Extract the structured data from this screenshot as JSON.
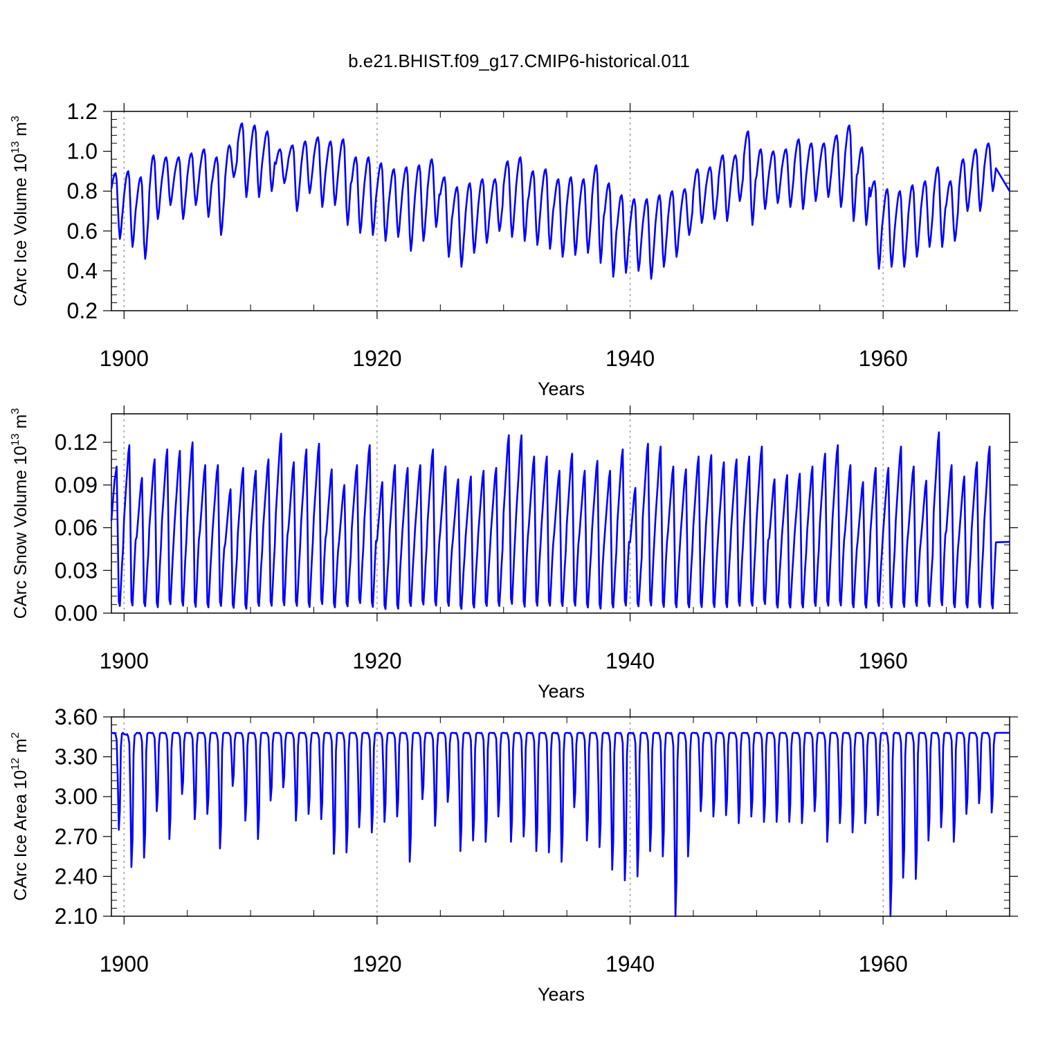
{
  "title": "b.e21.BHIST.f09_g17.CMIP6-historical.011",
  "chart_data": [
    {
      "type": "line",
      "name": "ice-volume",
      "title": "b.e21.BHIST.f09_g17.CMIP6-historical.011",
      "xlabel": "Years",
      "ylabel_main": "CArc Ice Volume 10",
      "ylabel_exp": "13",
      "ylabel_unit": " m",
      "ylabel_unit_exp": "3",
      "xlim": [
        1899,
        1970
      ],
      "ylim": [
        0.2,
        1.2
      ],
      "xticks": [
        1900,
        1920,
        1940,
        1960
      ],
      "xtick_labels": [
        "1900",
        "1920",
        "1940",
        "1960"
      ],
      "yticks": [
        0.2,
        0.4,
        0.6,
        0.8,
        1.0,
        1.2
      ],
      "ytick_labels": [
        "0.2",
        "0.4",
        "0.6",
        "0.8",
        "1.0",
        "1.2"
      ],
      "gridlines_x": [
        1900,
        1920,
        1940,
        1960
      ],
      "line_color": "#0000ff",
      "start_year": 1899,
      "monthly": false,
      "annual_max": [
        0.89,
        0.9,
        0.87,
        0.98,
        0.97,
        0.97,
        0.99,
        1.01,
        0.97,
        1.03,
        1.14,
        1.13,
        1.1,
        1.01,
        1.03,
        1.05,
        1.07,
        1.05,
        1.06,
        0.97,
        0.97,
        0.94,
        0.91,
        0.92,
        0.93,
        0.96,
        0.87,
        0.82,
        0.84,
        0.86,
        0.86,
        0.95,
        0.97,
        0.9,
        0.91,
        0.86,
        0.87,
        0.86,
        0.93,
        0.84,
        0.78,
        0.76,
        0.76,
        0.78,
        0.8,
        0.81,
        0.91,
        0.92,
        0.98,
        0.98,
        1.1,
        1.01,
        1.0,
        1.01,
        1.06,
        1.04,
        1.04,
        1.08,
        1.13,
        1.02,
        0.85,
        0.81,
        0.8,
        0.83,
        0.85,
        0.92,
        0.85,
        0.96,
        1.01,
        1.04,
        0.8
      ],
      "annual_min": [
        0.67,
        0.56,
        0.52,
        0.46,
        0.66,
        0.73,
        0.66,
        0.73,
        0.67,
        0.58,
        0.87,
        0.77,
        0.77,
        0.8,
        0.84,
        0.7,
        0.79,
        0.72,
        0.73,
        0.63,
        0.59,
        0.58,
        0.55,
        0.57,
        0.5,
        0.55,
        0.62,
        0.47,
        0.42,
        0.49,
        0.54,
        0.6,
        0.57,
        0.55,
        0.53,
        0.51,
        0.47,
        0.48,
        0.49,
        0.44,
        0.37,
        0.39,
        0.4,
        0.36,
        0.42,
        0.47,
        0.58,
        0.64,
        0.66,
        0.65,
        0.75,
        0.63,
        0.71,
        0.74,
        0.72,
        0.71,
        0.75,
        0.77,
        0.72,
        0.65,
        0.63,
        0.41,
        0.42,
        0.42,
        0.47,
        0.52,
        0.52,
        0.55,
        0.7,
        0.7,
        0.8
      ]
    },
    {
      "type": "line",
      "name": "snow-volume",
      "xlabel": "Years",
      "ylabel_main": "CArc Snow Volume 10",
      "ylabel_exp": "13",
      "ylabel_unit": " m",
      "ylabel_unit_exp": "3",
      "xlim": [
        1899,
        1970
      ],
      "ylim": [
        0.0,
        0.14
      ],
      "xticks": [
        1900,
        1920,
        1940,
        1960
      ],
      "xtick_labels": [
        "1900",
        "1920",
        "1940",
        "1960"
      ],
      "yticks": [
        0.0,
        0.03,
        0.06,
        0.09,
        0.12
      ],
      "ytick_labels": [
        "0.00",
        "0.03",
        "0.06",
        "0.09",
        "0.12"
      ],
      "gridlines_x": [
        1900,
        1920,
        1940,
        1960
      ],
      "line_color": "#0000ff",
      "start_year": 1899,
      "monthly": false,
      "annual_max": [
        0.103,
        0.118,
        0.095,
        0.108,
        0.115,
        0.114,
        0.12,
        0.104,
        0.104,
        0.087,
        0.102,
        0.1,
        0.108,
        0.126,
        0.106,
        0.115,
        0.119,
        0.101,
        0.09,
        0.104,
        0.118,
        0.092,
        0.104,
        0.102,
        0.104,
        0.115,
        0.103,
        0.094,
        0.096,
        0.1,
        0.102,
        0.125,
        0.125,
        0.11,
        0.11,
        0.1,
        0.112,
        0.1,
        0.107,
        0.1,
        0.115,
        0.088,
        0.119,
        0.117,
        0.103,
        0.101,
        0.11,
        0.111,
        0.106,
        0.108,
        0.11,
        0.117,
        0.094,
        0.097,
        0.098,
        0.103,
        0.112,
        0.118,
        0.104,
        0.092,
        0.102,
        0.102,
        0.117,
        0.103,
        0.093,
        0.127,
        0.104,
        0.096,
        0.106,
        0.117,
        0.05
      ],
      "annual_min": [
        0.065,
        0.003,
        0.003,
        0.002,
        0.004,
        0.003,
        0.002,
        0.002,
        0.003,
        0.002,
        0.001,
        0.003,
        0.003,
        0.003,
        0.003,
        0.002,
        0.004,
        0.002,
        0.003,
        0.005,
        0.002,
        0.001,
        0.001,
        0.003,
        0.004,
        0.003,
        0.003,
        0.001,
        0.002,
        0.003,
        0.003,
        0.004,
        0.002,
        0.003,
        0.003,
        0.003,
        0.003,
        0.002,
        0.001,
        0.002,
        0.003,
        0.003,
        0.003,
        0.002,
        0.002,
        0.002,
        0.002,
        0.002,
        0.002,
        0.003,
        0.003,
        0.004,
        0.002,
        0.002,
        0.002,
        0.003,
        0.003,
        0.003,
        0.002,
        0.002,
        0.003,
        0.002,
        0.002,
        0.003,
        0.003,
        0.003,
        0.002,
        0.002,
        0.002,
        0.001,
        0.05
      ]
    },
    {
      "type": "line",
      "name": "ice-area",
      "xlabel": "Years",
      "ylabel_main": "CArc Ice Area 10",
      "ylabel_exp": "12",
      "ylabel_unit": " m",
      "ylabel_unit_exp": "2",
      "xlim": [
        1899,
        1970
      ],
      "ylim": [
        2.1,
        3.6
      ],
      "xticks": [
        1900,
        1920,
        1940,
        1960
      ],
      "xtick_labels": [
        "1900",
        "1920",
        "1940",
        "1960"
      ],
      "yticks": [
        2.1,
        2.4,
        2.7,
        3.0,
        3.3,
        3.6
      ],
      "ytick_labels": [
        "2.10",
        "2.40",
        "2.70",
        "3.00",
        "3.30",
        "3.60"
      ],
      "gridlines_x": [
        1900,
        1920,
        1940,
        1960
      ],
      "line_color": "#0000ff",
      "start_year": 1899,
      "monthly": false,
      "annual_max": [
        3.48,
        3.47,
        3.48,
        3.48,
        3.48,
        3.48,
        3.48,
        3.48,
        3.48,
        3.48,
        3.48,
        3.48,
        3.48,
        3.48,
        3.48,
        3.48,
        3.48,
        3.48,
        3.48,
        3.48,
        3.48,
        3.48,
        3.48,
        3.48,
        3.48,
        3.48,
        3.48,
        3.48,
        3.48,
        3.48,
        3.48,
        3.48,
        3.48,
        3.48,
        3.48,
        3.48,
        3.48,
        3.48,
        3.48,
        3.48,
        3.48,
        3.48,
        3.48,
        3.48,
        3.48,
        3.48,
        3.48,
        3.48,
        3.48,
        3.48,
        3.48,
        3.48,
        3.48,
        3.48,
        3.48,
        3.48,
        3.48,
        3.48,
        3.48,
        3.48,
        3.48,
        3.48,
        3.48,
        3.48,
        3.48,
        3.48,
        3.48,
        3.48,
        3.48,
        3.48,
        3.48
      ],
      "annual_min": [
        2.75,
        2.47,
        2.54,
        2.89,
        2.68,
        3.02,
        2.83,
        2.87,
        2.61,
        3.08,
        2.82,
        2.68,
        2.97,
        3.07,
        2.82,
        2.87,
        2.83,
        2.57,
        2.58,
        2.77,
        2.73,
        2.81,
        2.85,
        2.51,
        2.98,
        2.78,
        2.96,
        2.59,
        2.67,
        2.66,
        2.85,
        2.66,
        2.7,
        2.59,
        2.58,
        2.51,
        2.92,
        2.67,
        2.62,
        2.45,
        2.37,
        2.4,
        2.59,
        2.55,
        2.1,
        2.55,
        2.89,
        2.85,
        2.86,
        2.8,
        2.85,
        2.81,
        2.81,
        2.81,
        2.8,
        2.89,
        2.66,
        2.8,
        2.73,
        2.8,
        2.86,
        2.1,
        2.39,
        2.38,
        2.67,
        2.77,
        2.66,
        2.87,
        2.95,
        2.88,
        2.75
      ]
    }
  ]
}
